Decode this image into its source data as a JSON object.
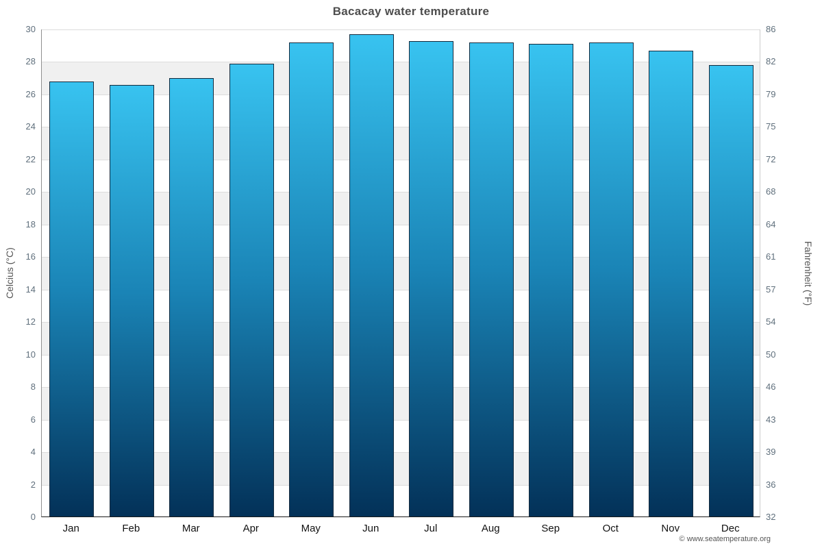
{
  "chart_data": {
    "type": "bar",
    "title": "Bacacay water temperature",
    "categories": [
      "Jan",
      "Feb",
      "Mar",
      "Apr",
      "May",
      "Jun",
      "Jul",
      "Aug",
      "Sep",
      "Oct",
      "Nov",
      "Dec"
    ],
    "values": [
      26.8,
      26.6,
      27.0,
      27.9,
      29.2,
      29.7,
      29.3,
      29.2,
      29.1,
      29.2,
      28.7,
      27.8
    ],
    "ylabel_left": "Celcius (°C)",
    "ylabel_right": "Fahrenheit (°F)",
    "ylim": [
      0,
      30
    ],
    "ytick_step": 2,
    "yticks_celsius": [
      0,
      2,
      4,
      6,
      8,
      10,
      12,
      14,
      16,
      18,
      20,
      22,
      24,
      26,
      28,
      30
    ],
    "yticks_fahrenheit": [
      "32",
      "36",
      "39",
      "43",
      "46",
      "50",
      "54",
      "57",
      "61",
      "64",
      "68",
      "72",
      "75",
      "79",
      "82",
      "86"
    ],
    "grid": true,
    "legend": false,
    "colors": {
      "bar_top": "#38c3f0",
      "bar_mid": "#1a84b6",
      "bar_bottom": "#033158",
      "bar_border": "#14293c",
      "band_light": "#ffffff",
      "band_dark": "#f0f0f0",
      "gridline": "#dcdcdc"
    },
    "footer": "© www.seatemperature.org"
  }
}
